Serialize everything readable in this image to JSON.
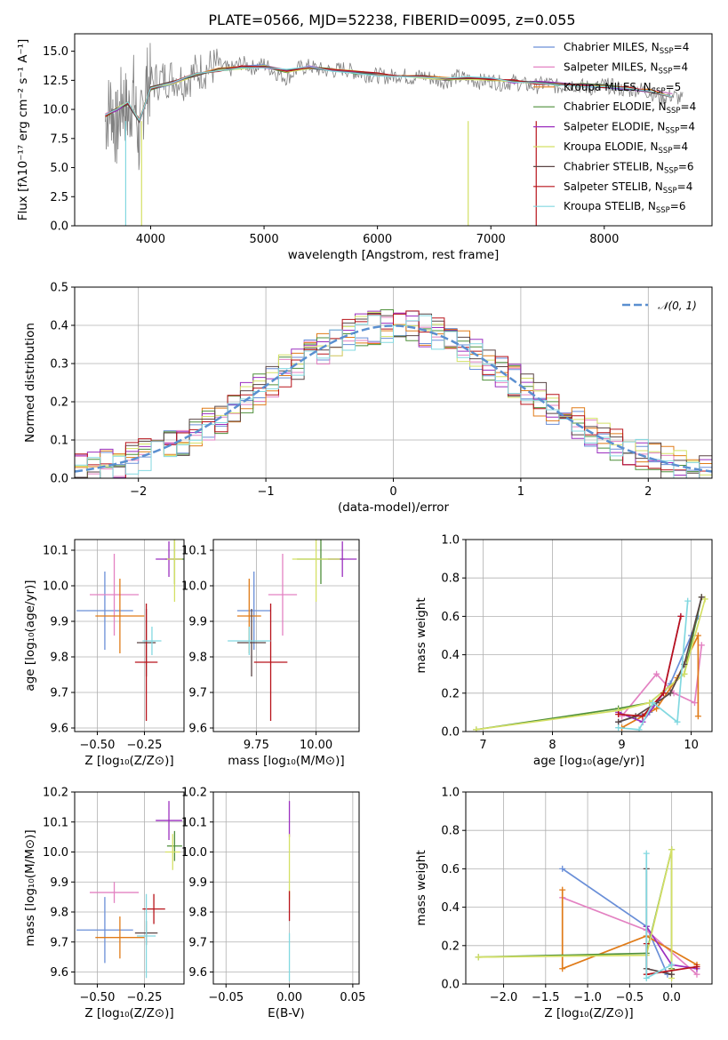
{
  "figure": {
    "title": "PLATE=0566, MJD=52238, FIBERID=0095, z=0.055"
  },
  "model_colors": [
    "#6a8fd8",
    "#e382c2",
    "#e07b18",
    "#4e8f3a",
    "#9b2fbf",
    "#d4e065",
    "#5a4545",
    "#b8131a",
    "#82d8e0"
  ],
  "chart_data": [
    {
      "panel": "spectrum",
      "type": "line",
      "xlabel": "wavelength [Angstrom, rest frame]",
      "ylabel": "Flux [fλ10⁻¹⁷ erg cm⁻² s⁻¹ A⁻¹]",
      "xlim": [
        3330,
        8950
      ],
      "ylim": [
        0,
        16.5
      ],
      "xticks": [
        4000,
        5000,
        6000,
        7000,
        8000
      ],
      "yticks": [
        0.0,
        2.5,
        5.0,
        7.5,
        10.0,
        12.5,
        15.0
      ],
      "grid": false,
      "legend_position": "upper right",
      "legend": [
        {
          "label": "Chabrier MILES, N",
          "sub": "SSP",
          "suffix": "=4"
        },
        {
          "label": "Salpeter MILES, N",
          "sub": "SSP",
          "suffix": "=4"
        },
        {
          "label": "Kroupa MILES, N",
          "sub": "SSP",
          "suffix": "=5"
        },
        {
          "label": "Chabrier ELODIE, N",
          "sub": "SSP",
          "suffix": "=4"
        },
        {
          "label": "Salpeter ELODIE, N",
          "sub": "SSP",
          "suffix": "=4"
        },
        {
          "label": "Kroupa ELODIE, N",
          "sub": "SSP",
          "suffix": "=4"
        },
        {
          "label": "Chabrier STELIB, N",
          "sub": "SSP",
          "suffix": "=6"
        },
        {
          "label": "Salpeter STELIB, N",
          "sub": "SSP",
          "suffix": "=4"
        },
        {
          "label": "Kroupa STELIB, N",
          "sub": "SSP",
          "suffix": "=6"
        }
      ],
      "data_series": {
        "name": "",
        "color": "#808080",
        "x": [
          3600,
          3650,
          3700,
          3750,
          3800,
          3850,
          3900,
          3950,
          4000,
          4100,
          4200,
          4300,
          4400,
          4500,
          4600,
          4700,
          4800,
          4900,
          5000,
          5100,
          5200,
          5300,
          5400,
          5500,
          5600,
          5700,
          5800,
          5900,
          6000,
          6100,
          6200,
          6300,
          6400,
          6500,
          6600,
          6700,
          6800,
          6900,
          7000,
          7100,
          7200,
          7300,
          7400,
          7500,
          7600,
          7700,
          7800,
          7900,
          8000,
          8100,
          8200,
          8300,
          8400,
          8500,
          8600,
          8700
        ],
        "y": [
          9.0,
          10.5,
          8.0,
          11.0,
          9.5,
          11.5,
          7.0,
          12.0,
          12.3,
          12.6,
          12.8,
          12.5,
          13.2,
          13.5,
          13.8,
          13.4,
          14.0,
          13.6,
          13.9,
          13.2,
          12.7,
          13.5,
          13.7,
          13.4,
          13.3,
          13.5,
          13.2,
          13.0,
          12.9,
          12.8,
          13.0,
          12.7,
          12.9,
          12.6,
          12.4,
          12.8,
          12.6,
          12.4,
          12.5,
          12.2,
          12.4,
          12.1,
          12.0,
          12.3,
          11.9,
          12.2,
          12.0,
          11.8,
          12.1,
          11.9,
          11.6,
          11.8,
          11.5,
          11.0,
          11.2,
          10.8
        ]
      },
      "model_series": {
        "x": [
          3600,
          3700,
          3800,
          3900,
          4000,
          4200,
          4400,
          4600,
          4800,
          5000,
          5200,
          5400,
          5600,
          5800,
          6000,
          6200,
          6400,
          6600,
          6800,
          7000,
          7200,
          7400,
          7600,
          7800,
          8000,
          8200,
          8400,
          8600
        ],
        "y": [
          9.5,
          10.0,
          10.5,
          9.0,
          11.8,
          12.3,
          13.0,
          13.4,
          13.6,
          13.7,
          13.3,
          13.6,
          13.4,
          13.2,
          13.0,
          12.9,
          12.8,
          12.6,
          12.7,
          12.6,
          12.4,
          12.3,
          12.2,
          12.1,
          12.0,
          11.8,
          11.6,
          11.2
        ]
      }
    },
    {
      "panel": "residual_histogram",
      "type": "histogram",
      "xlabel": "(data-model)/error",
      "ylabel": "Normed distribution",
      "xlim": [
        -2.5,
        2.5
      ],
      "ylim": [
        0,
        0.5
      ],
      "xticks": [
        -2,
        -1,
        0,
        1,
        2
      ],
      "yticks": [
        0.0,
        0.1,
        0.2,
        0.3,
        0.4,
        0.5
      ],
      "grid": true,
      "legend_position": "upper right",
      "legend_label": "𝒩(0, 1)",
      "bin_width": 0.1
    },
    {
      "panel": "age_vs_Z",
      "type": "errorbar",
      "xlabel": "Z [log₁₀(Z/Z⊙)]",
      "ylabel": "age  [log₁₀(age/yr)]",
      "xlim": [
        -0.62,
        -0.04
      ],
      "ylim": [
        9.59,
        10.13
      ],
      "xticks": [
        -0.5,
        -0.25
      ],
      "xtick_labels": [
        "−0.50",
        "−0.25"
      ],
      "yticks": [
        9.6,
        9.7,
        9.8,
        9.9,
        10.0,
        10.1
      ],
      "grid": true,
      "points": [
        {
          "x": -0.46,
          "xerr": 0.15,
          "y": 9.93,
          "yerr": 0.11
        },
        {
          "x": -0.41,
          "xerr": 0.13,
          "y": 9.975,
          "yerr": 0.115
        },
        {
          "x": -0.38,
          "xerr": 0.13,
          "y": 9.915,
          "yerr": 0.105
        },
        {
          "x": -0.09,
          "xerr": 0.05,
          "y": 10.075,
          "yerr": 0.07
        },
        {
          "x": -0.12,
          "xerr": 0.07,
          "y": 10.075,
          "yerr": 0.05
        },
        {
          "x": -0.09,
          "xerr": 0.04,
          "y": 10.075,
          "yerr": 0.12
        },
        {
          "x": -0.24,
          "xerr": 0.05,
          "y": 9.84,
          "yerr": 0.095
        },
        {
          "x": -0.24,
          "xerr": 0.06,
          "y": 9.785,
          "yerr": 0.165
        },
        {
          "x": -0.21,
          "xerr": 0.05,
          "y": 9.845,
          "yerr": 0.04
        }
      ]
    },
    {
      "panel": "age_vs_mass",
      "type": "errorbar",
      "xlabel": "mass [log₁₀(M/M⊙)]",
      "ylabel": "",
      "xlim": [
        9.57,
        10.18
      ],
      "ylim": [
        9.59,
        10.13
      ],
      "xticks": [
        9.75,
        10.0
      ],
      "xtick_labels": [
        "9.75",
        "10.00"
      ],
      "yticks": [
        9.6,
        9.7,
        9.8,
        9.9,
        10.0,
        10.1
      ],
      "grid": true,
      "points": [
        {
          "x": 9.74,
          "xerr": 0.07,
          "y": 9.93,
          "yerr": 0.11
        },
        {
          "x": 9.86,
          "xerr": 0.06,
          "y": 9.975,
          "yerr": 0.115
        },
        {
          "x": 9.72,
          "xerr": 0.05,
          "y": 9.915,
          "yerr": 0.105
        },
        {
          "x": 10.02,
          "xerr": 0.1,
          "y": 10.075,
          "yerr": 0.07
        },
        {
          "x": 10.11,
          "xerr": 0.06,
          "y": 10.075,
          "yerr": 0.05
        },
        {
          "x": 10.0,
          "xerr": 0.1,
          "y": 10.075,
          "yerr": 0.12
        },
        {
          "x": 9.73,
          "xerr": 0.06,
          "y": 9.84,
          "yerr": 0.095
        },
        {
          "x": 9.81,
          "xerr": 0.07,
          "y": 9.785,
          "yerr": 0.165
        },
        {
          "x": 9.72,
          "xerr": 0.09,
          "y": 9.845,
          "yerr": 0.04
        }
      ]
    },
    {
      "panel": "weight_vs_age",
      "type": "line",
      "xlabel": "age  [log₁₀(age/yr)]",
      "ylabel": "mass weight",
      "xlim": [
        6.75,
        10.3
      ],
      "ylim": [
        0,
        1.0
      ],
      "xticks": [
        7,
        8,
        9,
        10
      ],
      "yticks": [
        0.0,
        0.2,
        0.4,
        0.6,
        0.8,
        1.0
      ],
      "grid": true,
      "series": [
        {
          "x": [
            8.95,
            9.4,
            9.7,
            10.0,
            10.1
          ],
          "y": [
            0.05,
            0.1,
            0.25,
            0.5,
            0.6
          ]
        },
        {
          "x": [
            9.0,
            9.5,
            9.75,
            10.05,
            10.15
          ],
          "y": [
            0.08,
            0.3,
            0.2,
            0.15,
            0.45
          ]
        },
        {
          "x": [
            9.0,
            9.5,
            9.8,
            10.1,
            10.1
          ],
          "y": [
            0.02,
            0.12,
            0.28,
            0.5,
            0.08
          ]
        },
        {
          "x": [
            6.9,
            8.95,
            9.4,
            9.9,
            10.15
          ],
          "y": [
            0.01,
            0.12,
            0.15,
            0.3,
            0.7
          ]
        },
        {
          "x": [
            8.95,
            9.3,
            9.6,
            9.85
          ],
          "y": [
            0.1,
            0.05,
            0.2,
            0.6
          ]
        },
        {
          "x": [
            6.9,
            8.95,
            9.4,
            9.9,
            10.2
          ],
          "y": [
            0.01,
            0.11,
            0.15,
            0.3,
            0.69
          ]
        },
        {
          "x": [
            8.95,
            9.2,
            9.5,
            9.7,
            9.9,
            10.15
          ],
          "y": [
            0.05,
            0.08,
            0.15,
            0.2,
            0.35,
            0.7
          ]
        },
        {
          "x": [
            8.95,
            9.3,
            9.6,
            9.85
          ],
          "y": [
            0.09,
            0.08,
            0.2,
            0.6
          ]
        },
        {
          "x": [
            8.95,
            9.25,
            9.45,
            9.8,
            9.95
          ],
          "y": [
            0.02,
            0.01,
            0.15,
            0.05,
            0.68
          ]
        }
      ]
    },
    {
      "panel": "mass_vs_Z",
      "type": "errorbar",
      "xlabel": "Z [log₁₀(Z/Z⊙)]",
      "ylabel": "mass [log₁₀(M/M⊙)]",
      "xlim": [
        -0.62,
        -0.04
      ],
      "ylim": [
        9.56,
        10.2
      ],
      "xticks": [
        -0.5,
        -0.25
      ],
      "xtick_labels": [
        "−0.50",
        "−0.25"
      ],
      "yticks": [
        9.6,
        9.7,
        9.8,
        9.9,
        10.0,
        10.1,
        10.2
      ],
      "grid": true,
      "points": [
        {
          "x": -0.46,
          "xerr": 0.15,
          "y": 9.74,
          "yerr": 0.11
        },
        {
          "x": -0.41,
          "xerr": 0.13,
          "y": 9.865,
          "yerr": 0.035
        },
        {
          "x": -0.38,
          "xerr": 0.13,
          "y": 9.715,
          "yerr": 0.07
        },
        {
          "x": -0.09,
          "xerr": 0.04,
          "y": 10.02,
          "yerr": 0.05
        },
        {
          "x": -0.12,
          "xerr": 0.07,
          "y": 10.105,
          "yerr": 0.065
        },
        {
          "x": -0.1,
          "xerr": 0.04,
          "y": 10.0,
          "yerr": 0.06
        },
        {
          "x": -0.24,
          "xerr": 0.06,
          "y": 9.73,
          "yerr": 0.04
        },
        {
          "x": -0.2,
          "xerr": 0.06,
          "y": 9.81,
          "yerr": 0.05
        },
        {
          "x": -0.24,
          "xerr": 0.05,
          "y": 9.72,
          "yerr": 0.14
        }
      ]
    },
    {
      "panel": "mass_vs_EBV",
      "type": "errorbar",
      "xlabel": "E(B-V)",
      "ylabel": "",
      "xlim": [
        -0.06,
        0.055
      ],
      "ylim": [
        9.56,
        10.2
      ],
      "xticks": [
        -0.05,
        0.0,
        0.05
      ],
      "xtick_labels": [
        "−0.05",
        "0.00",
        "0.05"
      ],
      "yticks": [
        9.6,
        9.7,
        9.8,
        9.9,
        10.0,
        10.1,
        10.2
      ],
      "grid": true,
      "points": [
        {
          "x": 0.0,
          "xerr": 0.0,
          "y": 10.11,
          "yerr": 0.06
        },
        {
          "x": 0.0,
          "xerr": 0.0,
          "y": 9.95,
          "yerr": 0.11
        },
        {
          "x": 0.0,
          "xerr": 0.0,
          "y": 9.82,
          "yerr": 0.05
        },
        {
          "x": 0.0,
          "xerr": 0.0,
          "y": 9.65,
          "yerr": 0.08
        }
      ]
    },
    {
      "panel": "weight_vs_Z",
      "type": "line",
      "xlabel": "Z [log₁₀(Z/Z⊙)]",
      "ylabel": "mass weight",
      "xlim": [
        -2.45,
        0.48
      ],
      "ylim": [
        0,
        1.0
      ],
      "xticks": [
        -2.0,
        -1.5,
        -1.0,
        -0.5,
        0.0
      ],
      "xtick_labels": [
        "−2.0",
        "−1.5",
        "−1.0",
        "−0.5",
        "0.0"
      ],
      "yticks": [
        0.0,
        0.2,
        0.4,
        0.6,
        0.8,
        1.0
      ],
      "grid": true,
      "series": [
        {
          "x": [
            -1.3,
            -0.3,
            -0.05
          ],
          "y": [
            0.6,
            0.3,
            0.05
          ]
        },
        {
          "x": [
            -1.3,
            -0.3,
            0.3
          ],
          "y": [
            0.45,
            0.28,
            0.05
          ]
        },
        {
          "x": [
            -1.3,
            -1.3,
            -0.3,
            0.3
          ],
          "y": [
            0.49,
            0.08,
            0.25,
            0.1
          ]
        },
        {
          "x": [
            -2.3,
            -0.3,
            0.0,
            0.0
          ],
          "y": [
            0.14,
            0.16,
            0.7,
            0.08
          ]
        },
        {
          "x": [
            -0.3,
            0.0,
            0.3
          ],
          "y": [
            0.3,
            0.1,
            0.08
          ]
        },
        {
          "x": [
            -2.3,
            -0.3,
            0.0,
            0.0
          ],
          "y": [
            0.14,
            0.15,
            0.7,
            0.03
          ]
        },
        {
          "x": [
            -0.3,
            -0.3,
            0.0
          ],
          "y": [
            0.6,
            0.08,
            0.05
          ]
        },
        {
          "x": [
            -0.3,
            -0.3,
            0.3
          ],
          "y": [
            0.21,
            0.05,
            0.09
          ]
        },
        {
          "x": [
            -0.3,
            -0.3,
            0.0
          ],
          "y": [
            0.68,
            0.03,
            0.1
          ]
        }
      ]
    }
  ]
}
